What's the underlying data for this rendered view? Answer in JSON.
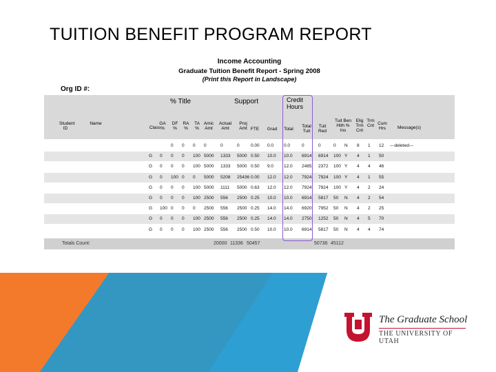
{
  "slide_title": "TUITION BENEFIT PROGRAM REPORT",
  "report": {
    "title": "Income Accounting",
    "subtitle": "Graduate Tuition Benefit Report - Spring 2008",
    "note": "(Print this Report in Landscape)",
    "org_label": "Org ID #:",
    "group_headers": [
      "% Title",
      "Support",
      "Credit Hours"
    ],
    "columns": [
      "Student ID",
      "Name",
      "Class",
      "GA %",
      "DF %",
      "RA %",
      "TA %",
      "Amic Amt",
      "Actual Amt",
      "Proj Amt",
      "FTE",
      "Grad",
      "Total",
      "Total Tuit",
      "Tuit Red",
      "Tuit Ben Hith % Ins",
      "Elig Trm Cnt",
      "Trm Cnt",
      "Cum Hrs",
      "Message(s)"
    ],
    "rows": [
      [
        "",
        "0",
        "0",
        "0",
        "0",
        "0",
        "0",
        "0.00",
        "0.0",
        "0.0",
        "0",
        "0",
        "0",
        "N",
        "8",
        "1",
        "12",
        "---deleted---"
      ],
      [
        "G",
        "0",
        "0",
        "0",
        "100",
        "5000",
        "1333",
        "5000",
        "0.50",
        "10.0",
        "10.0",
        "6914",
        "6914",
        "100",
        "Y",
        "4",
        "1",
        "50"
      ],
      [
        "G",
        "0",
        "0",
        "0",
        "100",
        "5000",
        "1333",
        "5000",
        "0.50",
        "9.0",
        "12.0",
        "2485",
        "2372",
        "100",
        "Y",
        "4",
        "4",
        "46"
      ],
      [
        "G",
        "0",
        "100",
        "0",
        "0",
        "5000",
        "5208",
        "25436",
        "0.00",
        "12.0",
        "12.0",
        "7924",
        "7924",
        "100",
        "Y",
        "4",
        "1",
        "55"
      ],
      [
        "G",
        "0",
        "0",
        "0",
        "100",
        "5000",
        "1111",
        "5000",
        "0.63",
        "12.0",
        "12.0",
        "7924",
        "7924",
        "100",
        "Y",
        "4",
        "2",
        "24"
      ],
      [
        "G",
        "0",
        "0",
        "0",
        "100",
        "2500",
        "556",
        "2500",
        "0.25",
        "10.0",
        "10.0",
        "6914",
        "5817",
        "50",
        "N",
        "4",
        "2",
        "54"
      ],
      [
        "G",
        "100",
        "0",
        "0",
        "0",
        "2500",
        "556",
        "2500",
        "0.25",
        "14.0",
        "14.0",
        "6920",
        "7952",
        "50",
        "N",
        "4",
        "2",
        "25"
      ],
      [
        "G",
        "0",
        "0",
        "0",
        "100",
        "2500",
        "556",
        "2500",
        "0.25",
        "14.0",
        "14.0",
        "2750",
        "1252",
        "50",
        "N",
        "4",
        "5",
        "70"
      ],
      [
        "G",
        "0",
        "0",
        "0",
        "100",
        "2500",
        "556",
        "2500",
        "0.50",
        "10.0",
        "10.0",
        "6914",
        "5817",
        "50",
        "N",
        "4",
        "4",
        "74"
      ]
    ],
    "totals": {
      "label": "Totals Count:",
      "amic": "20000",
      "actual": "11336",
      "proj": "50457",
      "tuit": "50736",
      "red": "45112"
    }
  },
  "logo": {
    "school": "The Graduate School",
    "university": "THE UNIVERSITY OF UTAH",
    "colors": {
      "red": "#c41230"
    }
  },
  "colors": {
    "orange": "#f47a2b",
    "blue": "#2e9fd2",
    "highlight": "#8a5bd6"
  }
}
